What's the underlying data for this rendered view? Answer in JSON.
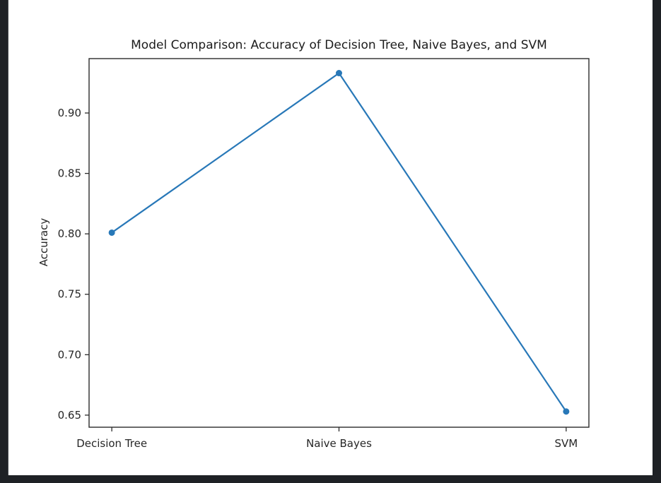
{
  "window": {
    "background_color": "#1e2125",
    "canvas_color": "#ffffff"
  },
  "chart_data": {
    "type": "line",
    "title": "Model Comparison: Accuracy of Decision Tree, Naive Bayes, and SVM",
    "xlabel": "",
    "ylabel": "Accuracy",
    "categories": [
      "Decision Tree",
      "Naive Bayes",
      "SVM"
    ],
    "values": [
      0.801,
      0.933,
      0.653
    ],
    "ytick_values": [
      0.65,
      0.7,
      0.75,
      0.8,
      0.85,
      0.9
    ],
    "ytick_labels": [
      "0.65",
      "0.70",
      "0.75",
      "0.80",
      "0.85",
      "0.90"
    ],
    "ylim": [
      0.64,
      0.945
    ],
    "xlim": [
      -0.1,
      2.1
    ],
    "grid": false,
    "legend": "none",
    "line_color": "#2878b8",
    "marker": "circle",
    "spine_color": "#2b2b2b",
    "text_color": "#262626"
  }
}
